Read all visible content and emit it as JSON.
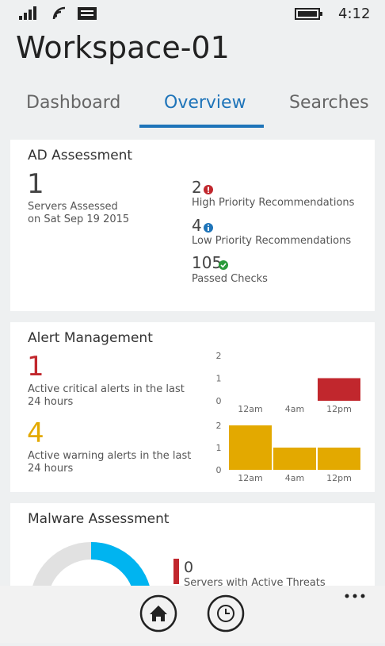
{
  "status_bar": {
    "time": "4:12"
  },
  "header": {
    "title": "Workspace-01",
    "tabs": [
      "Dashboard",
      "Overview",
      "Searches"
    ]
  },
  "ad_assessment": {
    "title": "AD Assessment",
    "servers_count": "1",
    "servers_label": "Servers Assessed",
    "date_label": "on Sat Sep 19 2015",
    "stats": [
      {
        "value": "2",
        "label": "High Priority Recommendations"
      },
      {
        "value": "4",
        "label": "Low Priority Recommendations"
      },
      {
        "value": "105",
        "label": "Passed Checks"
      }
    ]
  },
  "alert_management": {
    "title": "Alert Management",
    "critical_count": "1",
    "critical_label": "Active critical alerts in the last 24 hours",
    "warning_count": "4",
    "warning_label": "Active warning alerts in the last 24 hours"
  },
  "malware_assessment": {
    "title": "Malware Assessment",
    "threat_count": "0",
    "threat_label": "Servers with Active Threats"
  },
  "chart_data": [
    {
      "type": "bar",
      "categories": [
        "12am",
        "4am",
        "12pm"
      ],
      "values": [
        0,
        0,
        1
      ],
      "color": "#c1272d",
      "ylim": [
        0,
        2
      ],
      "yticks": [
        0,
        1,
        2
      ]
    },
    {
      "type": "bar",
      "categories": [
        "12am",
        "4am",
        "12pm"
      ],
      "values": [
        2,
        1,
        1
      ],
      "color": "#e3a900",
      "ylim": [
        0,
        2
      ],
      "yticks": [
        0,
        1,
        2
      ]
    }
  ]
}
